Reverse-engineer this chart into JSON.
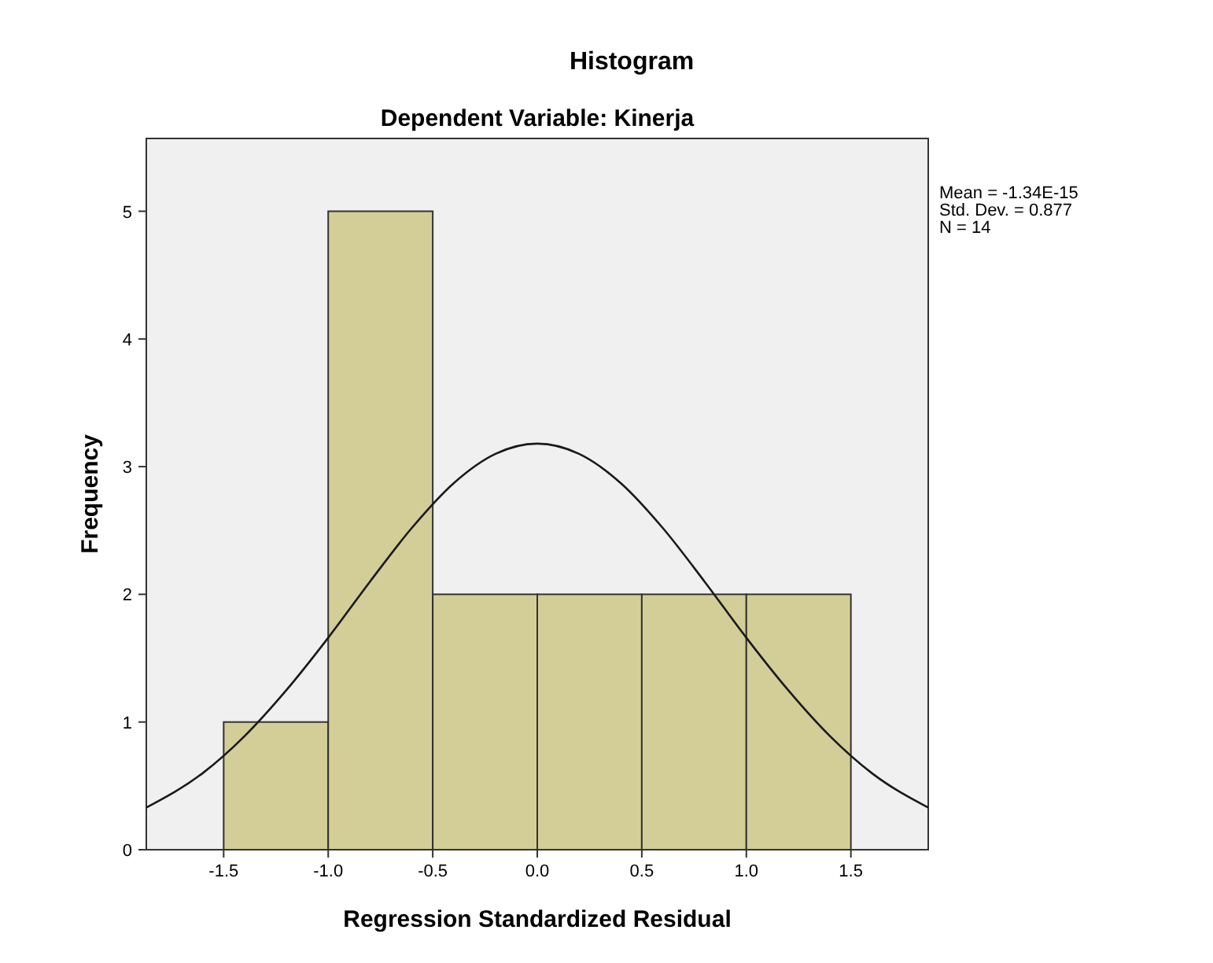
{
  "chart_data": {
    "type": "histogram",
    "title": "Histogram",
    "subtitle": "Dependent Variable: Kinerja",
    "xlabel": "Regression Standardized Residual",
    "ylabel": "Frequency",
    "bins": [
      -1.5,
      -1.0,
      -0.5,
      0,
      0.5,
      1.0,
      1.5
    ],
    "values": [
      1,
      5,
      2,
      2,
      2,
      2
    ],
    "color": "#d3ce97",
    "series": [
      {
        "type": "line",
        "color": "#1a1a1a",
        "x": [
          -1.87,
          -1.6,
          -1.4,
          -1.2,
          -1.0,
          -0.8,
          -0.6,
          -0.4,
          -0.2,
          0,
          0.2,
          0.4,
          0.6,
          0.8,
          1.0,
          1.2,
          1.4,
          1.6,
          1.87
        ],
        "values": [
          0.33,
          0.6,
          0.89,
          1.25,
          1.66,
          2.1,
          2.52,
          2.87,
          3.1,
          3.18,
          3.1,
          2.87,
          2.52,
          2.1,
          1.66,
          1.25,
          0.89,
          0.6,
          0.33
        ]
      }
    ],
    "xlim": [
      -1.87,
      1.87
    ],
    "ylim": [
      0,
      5.57
    ],
    "xticks": [
      -1.5,
      {
        "value": -1,
        "label": "-1.0"
      },
      -0.5,
      {
        "value": 0,
        "label": "0.0"
      },
      0.5,
      {
        "value": 1,
        "label": "1.0"
      },
      1.5
    ],
    "yticks": [
      0,
      1,
      2,
      3,
      4,
      5
    ],
    "grid": false,
    "annotations": [
      "Mean = -1.34E-15",
      "Std. Dev. = 0.877",
      "N = 14"
    ]
  }
}
